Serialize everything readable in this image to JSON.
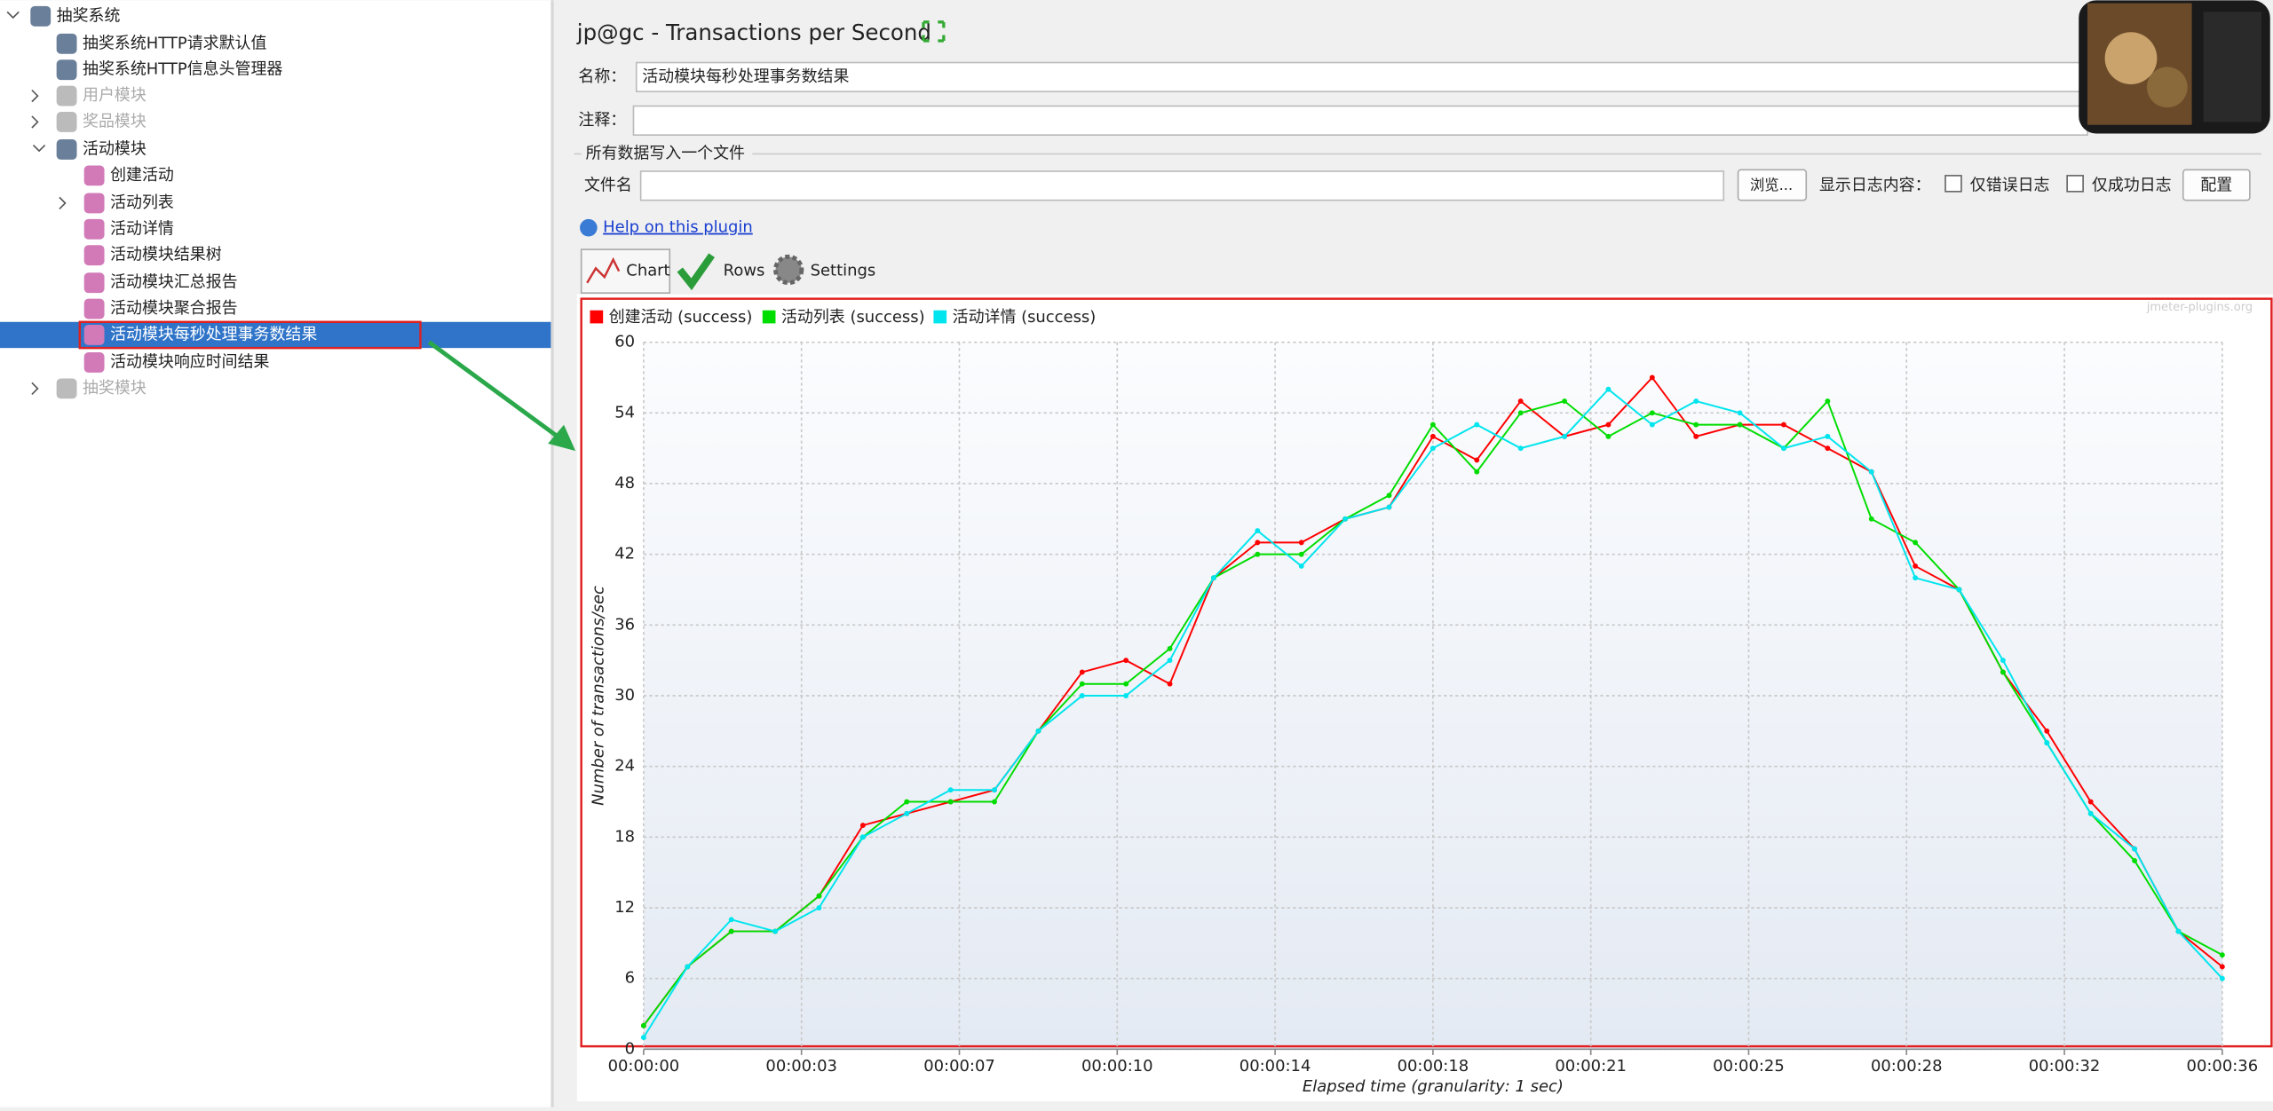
{
  "tree": {
    "nodes": [
      {
        "label": "抽奖系统"
      },
      {
        "label": "抽奖系统HTTP请求默认值"
      },
      {
        "label": "抽奖系统HTTP信息头管理器"
      },
      {
        "label": "用户模块"
      },
      {
        "label": "奖品模块"
      },
      {
        "label": "活动模块"
      },
      {
        "label": "创建活动"
      },
      {
        "label": "活动列表"
      },
      {
        "label": "活动详情"
      },
      {
        "label": "活动模块结果树"
      },
      {
        "label": "活动模块汇总报告"
      },
      {
        "label": "活动模块聚合报告"
      },
      {
        "label": "活动模块每秒处理事务数结果"
      },
      {
        "label": "活动模块响应时间结果"
      },
      {
        "label": "抽奖模块"
      }
    ]
  },
  "header": {
    "title": "jp@gc - Transactions per Second"
  },
  "form": {
    "name_label": "名称：",
    "name_value": "活动模块每秒处理事务数结果",
    "comment_label": "注释：",
    "file_group": "所有数据写入一个文件",
    "file_label": "文件名",
    "browse": "浏览...",
    "log_label": "显示日志内容：",
    "errors_only": "仅错误日志",
    "success_only": "仅成功日志",
    "configure": "配置",
    "help": "Help on this plugin"
  },
  "tabs": [
    "Chart",
    "Rows",
    "Settings"
  ],
  "chart_data": {
    "type": "line",
    "watermark": "jmeter-plugins.org",
    "x_label": "Elapsed time (granularity: 1 sec)",
    "y_label": "Number of transactions/sec",
    "x": [
      0,
      1,
      2,
      3,
      4,
      5,
      6,
      7,
      8,
      9,
      10,
      11,
      12,
      13,
      14,
      15,
      16,
      17,
      18,
      19,
      20,
      21,
      22,
      23,
      24,
      25,
      26,
      27,
      28,
      29,
      30,
      31,
      32,
      33,
      34,
      35,
      36
    ],
    "xlim": [
      0,
      36
    ],
    "xticks": [
      {
        "value": 0,
        "label": "00:00:00"
      },
      {
        "value": 3.6,
        "label": "00:00:03"
      },
      {
        "value": 7.2,
        "label": "00:00:07"
      },
      {
        "value": 10.8,
        "label": "00:00:10"
      },
      {
        "value": 14.4,
        "label": "00:00:14"
      },
      {
        "value": 18,
        "label": "00:00:18"
      },
      {
        "value": 21.6,
        "label": "00:00:21"
      },
      {
        "value": 25.2,
        "label": "00:00:25"
      },
      {
        "value": 28.8,
        "label": "00:00:28"
      },
      {
        "value": 32.4,
        "label": "00:00:32"
      },
      {
        "value": 36,
        "label": "00:00:36"
      }
    ],
    "ylim": [
      0,
      60
    ],
    "yticks": [
      0,
      6,
      12,
      18,
      24,
      30,
      36,
      42,
      48,
      54,
      60
    ],
    "grid": true,
    "series": [
      {
        "name": "创建活动 (success)",
        "color": "#ff0000",
        "values": [
          2,
          7,
          10,
          10,
          13,
          19,
          20,
          21,
          22,
          27,
          32,
          33,
          31,
          40,
          43,
          43,
          45,
          46,
          52,
          50,
          55,
          52,
          53,
          57,
          52,
          53,
          53,
          51,
          49,
          41,
          39,
          32,
          27,
          21,
          17,
          10,
          7
        ]
      },
      {
        "name": "活动列表 (success)",
        "color": "#00dd00",
        "values": [
          2,
          7,
          10,
          10,
          13,
          18,
          21,
          21,
          21,
          27,
          31,
          31,
          34,
          40,
          42,
          42,
          45,
          47,
          53,
          49,
          54,
          55,
          52,
          54,
          53,
          53,
          51,
          55,
          45,
          43,
          39,
          32,
          26,
          20,
          16,
          10,
          8
        ]
      },
      {
        "name": "活动详情 (success)",
        "color": "#00e5ee",
        "values": [
          1,
          7,
          11,
          10,
          12,
          18,
          20,
          22,
          22,
          27,
          30,
          30,
          33,
          40,
          44,
          41,
          45,
          46,
          51,
          53,
          51,
          52,
          56,
          53,
          55,
          54,
          51,
          52,
          49,
          40,
          39,
          33,
          26,
          20,
          17,
          10,
          6
        ]
      }
    ]
  }
}
